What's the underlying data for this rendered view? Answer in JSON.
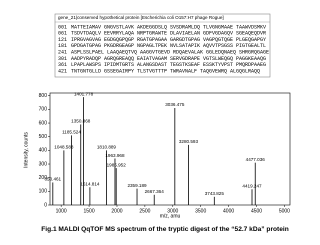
{
  "sequence_box": {
    "title": "gene_21|conserved hypothetical protein [Escherichia coli O157:H7 phage Rogue]",
    "lines": [
      {
        "num": "001",
        "seq": "MATTEIAMAV GNGVSTLAVK AKDEGGDSLQ SVSDRAMLDQ TLVGNGMAAE TAAWVDSMKV"
      },
      {
        "num": "061",
        "seq": "TSDVTDAQLV EEVRRYLAQA NRPTGRAWTE DLAVIAELAN GDFVGDAGQV SGEAQEQDVR"
      },
      {
        "num": "121",
        "seq": "IPRGVAGVAG EGDGQGPQGP RGATGPAGAA GARGDTGPAG VAGPQGTQGE PLGEQGAPGY"
      },
      {
        "num": "181",
        "seq": "GPDGATGPAG PKGDRGEAGP NGPAGLTPEK NVLSATAPIK AQVVTPSGSS PIGTGEALTL"
      },
      {
        "num": "241",
        "seq": "ASPLSSLPAEL LAAQAEQTVQ AAGGVTGEVD RDQAEVALAK GGLEDQNAEQ SHRGRQGAGE"
      },
      {
        "num": "301",
        "seq": "AADPYRADQP AGRQGREAQQ EAIATVAGAM SERVGDRAPE VGTSLWEQGQ PAGGKEAAQG"
      },
      {
        "num": "361",
        "seq": "LPAPLAWSPS IPIDMTGRTS ALANGSDAST TEGSTKSEAF ESSKTYVPST PMQRDPAAEG"
      },
      {
        "num": "421",
        "seq": "TNTGNTGLLD GSSEGAIRPY TLSTVGTTTP TWRAVNALF TAQGVEWRQ ALGQGLRAQQ"
      }
    ]
  },
  "chart_data": {
    "type": "spectrum",
    "xlabel": "m/z, amu",
    "ylabel": "Intensity, counts",
    "x": [
      850.461,
      1048.588,
      1185.524,
      1350.868,
      1401.778,
      1514.814,
      1810.889,
      1963.968,
      1985.952,
      2359.189,
      2667.364,
      3036.475,
      3280.593,
      3743.825,
      4419.247,
      4477.036
    ],
    "values": [
      165,
      400,
      510,
      590,
      790,
      130,
      400,
      340,
      270,
      120,
      75,
      710,
      440,
      60,
      115,
      310
    ],
    "color": "#000000",
    "xlim": [
      800,
      5100
    ],
    "xticks": [
      1000,
      1500,
      2000,
      2500,
      3000,
      3500,
      4000,
      4500,
      5000
    ],
    "ylim": [
      0,
      820
    ],
    "yticks": [
      0,
      100,
      200,
      300,
      400,
      500,
      600,
      700,
      800
    ]
  },
  "caption": "Fig.1 MALDI QqTOF MS spectrum of the tryptic digest of the “52.7 kDa” protein"
}
